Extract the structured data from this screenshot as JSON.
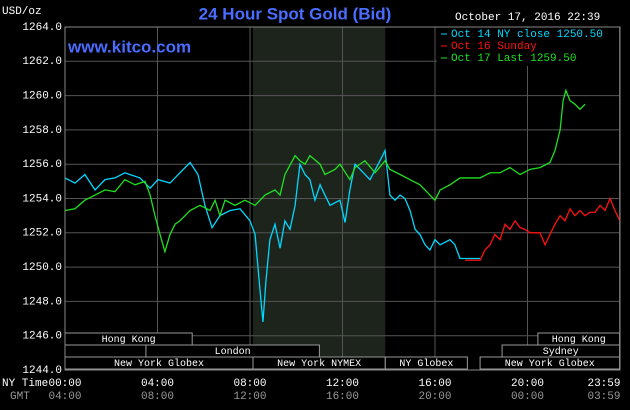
{
  "chart_data": {
    "type": "line",
    "title": "24 Hour Spot Gold (Bid)",
    "subtitle": "www.kitco.com",
    "timestamp": "October 17, 2016 22:39",
    "y_label": "USD/oz",
    "x_label": "NY Time",
    "x2_label": "GMT",
    "ylim": [
      1244,
      1264
    ],
    "yticks": [
      {
        "value": 1244,
        "label": "1244.0"
      },
      {
        "value": 1246,
        "label": "1246.0"
      },
      {
        "value": 1248,
        "label": "1248.0"
      },
      {
        "value": 1250,
        "label": "1250.0"
      },
      {
        "value": 1252,
        "label": "1252.0"
      },
      {
        "value": 1254,
        "label": "1254.0"
      },
      {
        "value": 1256,
        "label": "1256.0"
      },
      {
        "value": 1258,
        "label": "1258.0"
      },
      {
        "value": 1260,
        "label": "1260.0"
      },
      {
        "value": 1262,
        "label": "1262.0"
      },
      {
        "value": 1264,
        "label": "1264.0"
      }
    ],
    "xlim": [
      0,
      24
    ],
    "xticks": [
      {
        "value": 0,
        "label": "00:00"
      },
      {
        "value": 4,
        "label": "04:00"
      },
      {
        "value": 8,
        "label": "08:00"
      },
      {
        "value": 12,
        "label": "12:00"
      },
      {
        "value": 16,
        "label": "16:00"
      },
      {
        "value": 20,
        "label": "20:00"
      },
      {
        "value": 23.98,
        "label": "23:59"
      }
    ],
    "x2_tick_labels": [
      "04:00",
      "08:00",
      "12:00",
      "16:00",
      "20:00",
      "00:00",
      "03:59"
    ],
    "grid": true,
    "legend": "top-right",
    "series": [
      {
        "name": "Oct 14 NY close 1250.50",
        "color": "#00d8ff",
        "x": [
          0,
          0.43,
          0.86,
          1.3,
          1.73,
          2.16,
          2.59,
          3.24,
          3.68,
          4.02,
          4.54,
          4.97,
          5.41,
          5.75,
          6.05,
          6.36,
          6.7,
          7.14,
          7.57,
          8.0,
          8.22,
          8.43,
          8.56,
          8.69,
          8.86,
          9.08,
          9.3,
          9.51,
          9.73,
          9.95,
          10.16,
          10.38,
          10.59,
          10.81,
          11.03,
          11.24,
          11.46,
          11.89,
          12.11,
          12.32,
          12.54,
          12.76,
          13.19,
          13.62,
          13.84,
          14.05,
          14.27,
          14.49,
          14.7,
          14.92,
          15.14,
          15.35,
          15.57,
          15.78,
          16.0,
          16.22,
          16.65,
          16.86,
          17.08,
          17.95
        ],
        "values": [
          1255.2,
          1254.9,
          1255.4,
          1254.5,
          1255.1,
          1255.2,
          1255.5,
          1255.2,
          1254.6,
          1255.1,
          1254.9,
          1255.5,
          1256.1,
          1255.4,
          1253.6,
          1252.3,
          1253.0,
          1253.3,
          1253.4,
          1252.7,
          1251.9,
          1248.7,
          1246.8,
          1249.2,
          1251.6,
          1252.5,
          1251.1,
          1252.7,
          1252.2,
          1253.6,
          1256.0,
          1255.4,
          1255.1,
          1253.9,
          1254.8,
          1254.2,
          1253.6,
          1253.9,
          1252.6,
          1254.5,
          1256.0,
          1255.7,
          1255.1,
          1256.2,
          1256.8,
          1254.2,
          1253.9,
          1254.2,
          1254.0,
          1253.3,
          1252.2,
          1251.9,
          1251.3,
          1251.0,
          1251.6,
          1251.3,
          1251.6,
          1251.3,
          1250.5,
          1250.5
        ]
      },
      {
        "name": "Oct 16 Sunday",
        "color": "#ff1010",
        "x": [
          17.3,
          17.95,
          18.16,
          18.38,
          18.59,
          18.81,
          19.03,
          19.24,
          19.46,
          19.68,
          19.89,
          20.11,
          20.54,
          20.76,
          20.97,
          21.19,
          21.41,
          21.62,
          21.84,
          22.05,
          22.27,
          22.49,
          22.7,
          22.92,
          23.14,
          23.35,
          23.57,
          23.78,
          24.0
        ],
        "values": [
          1250.4,
          1250.4,
          1251.0,
          1251.3,
          1251.9,
          1251.6,
          1252.5,
          1252.2,
          1252.7,
          1252.3,
          1252.2,
          1252.0,
          1252.0,
          1251.3,
          1251.9,
          1252.5,
          1253.0,
          1252.7,
          1253.4,
          1253.0,
          1253.3,
          1253.0,
          1253.2,
          1253.2,
          1253.6,
          1253.3,
          1254.0,
          1253.3,
          1252.7
        ]
      },
      {
        "name": "Oct 17 Last 1259.50",
        "color": "#20e020",
        "x": [
          0,
          0.43,
          0.86,
          1.3,
          1.73,
          2.16,
          2.59,
          3.03,
          3.46,
          3.68,
          3.89,
          4.11,
          4.32,
          4.54,
          4.76,
          4.97,
          5.41,
          5.84,
          6.27,
          6.49,
          6.7,
          6.92,
          7.35,
          7.78,
          8.22,
          8.65,
          9.08,
          9.3,
          9.51,
          9.95,
          10.16,
          10.38,
          10.59,
          11.03,
          11.24,
          11.68,
          11.89,
          12.32,
          12.54,
          12.97,
          13.41,
          13.84,
          14.05,
          14.49,
          14.92,
          15.35,
          15.78,
          16.0,
          16.22,
          16.65,
          17.08,
          17.51,
          17.95,
          18.38,
          18.81,
          19.24,
          19.68,
          20.11,
          20.54,
          20.97,
          21.19,
          21.41,
          21.54,
          21.66,
          21.84,
          22.05,
          22.27,
          22.49
        ],
        "values": [
          1253.3,
          1253.4,
          1253.9,
          1254.2,
          1254.5,
          1254.4,
          1255.1,
          1254.8,
          1255.0,
          1254.2,
          1253.0,
          1251.9,
          1250.9,
          1251.9,
          1252.5,
          1252.7,
          1253.3,
          1253.6,
          1253.3,
          1253.9,
          1253.0,
          1253.9,
          1253.6,
          1253.9,
          1253.6,
          1254.2,
          1254.5,
          1254.2,
          1255.4,
          1256.5,
          1256.2,
          1256.0,
          1256.5,
          1256.0,
          1255.4,
          1255.7,
          1256.0,
          1255.1,
          1255.8,
          1256.2,
          1255.5,
          1256.2,
          1255.7,
          1255.4,
          1255.1,
          1254.8,
          1254.2,
          1253.9,
          1254.5,
          1254.8,
          1255.2,
          1255.2,
          1255.2,
          1255.5,
          1255.5,
          1255.8,
          1255.4,
          1255.7,
          1255.8,
          1256.1,
          1256.8,
          1258.0,
          1259.7,
          1260.3,
          1259.7,
          1259.5,
          1259.2,
          1259.5
        ]
      }
    ],
    "sessions": [
      [
        {
          "name": "Hong Kong",
          "start": 0,
          "end": 5.5
        },
        {
          "name": "Hong Kong",
          "start": 20.45,
          "end": 23.98
        }
      ],
      [
        {
          "name": "London",
          "start": 3.5,
          "end": 11
        },
        {
          "name": "Sydney",
          "start": 18.9,
          "end": 23.98
        }
      ],
      [
        {
          "name": "New York Globex",
          "start": 0,
          "end": 8.13
        },
        {
          "name": "New York NYMEX",
          "start": 8.13,
          "end": 13.85,
          "shade": true
        },
        {
          "name": "NY Globex",
          "start": 13.85,
          "end": 17.4
        },
        {
          "name": "New York Globex",
          "start": 17.95,
          "end": 23.98
        }
      ]
    ]
  }
}
